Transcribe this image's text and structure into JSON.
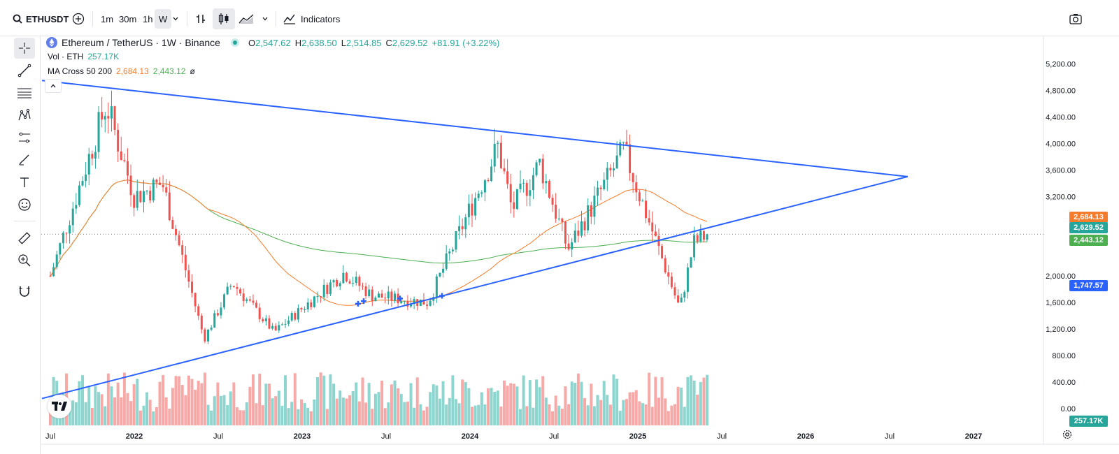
{
  "toolbar": {
    "symbol": "ETHUSDT",
    "intervals": [
      "1m",
      "30m",
      "1h",
      "W"
    ],
    "active_interval": "W",
    "indicators_label": "Indicators"
  },
  "legend": {
    "title": "Ethereum / TetherUS · 1W · Binance",
    "o_label": "O",
    "o_value": "2,547.62",
    "h_label": "H",
    "h_value": "2,638.50",
    "l_label": "L",
    "l_value": "2,514.85",
    "c_label": "C",
    "c_value": "2,629.52",
    "change": "+81.91 (+3.22%)",
    "vol_label": "Vol · ETH",
    "vol_value": "257.17K",
    "ma_label": "MA Cross 50 200",
    "ma50": "2,684.13",
    "ma200": "2,443.12",
    "ma_extra": "ø"
  },
  "colors": {
    "up": "#26a69a",
    "down": "#ef5350",
    "up_vol": "#8fd5cf",
    "down_vol": "#f7a9a7",
    "ma50": "#f57c2a",
    "ma200": "#4caf50",
    "trendline": "#2962ff"
  },
  "price_axis": {
    "ticks": [
      "5,200.00",
      "4,800.00",
      "4,400.00",
      "4,000.00",
      "3,600.00",
      "3,200.00",
      "2,000.00",
      "1,600.00",
      "1,200.00",
      "800.00",
      "400.00",
      "0.00"
    ],
    "labels": [
      {
        "text": "2,684.13",
        "color": "#f57c2a"
      },
      {
        "text": "2,629.52",
        "color": "#26a69a"
      },
      {
        "text": "2,443.12",
        "color": "#4caf50"
      },
      {
        "text": "1,747.57",
        "color": "#2962ff"
      },
      {
        "text": "257.17K",
        "color": "#26a69a"
      }
    ]
  },
  "time_axis": [
    "Jul",
    "2022",
    "Jul",
    "2023",
    "Jul",
    "2024",
    "Jul",
    "2025",
    "Jul",
    "2026",
    "Jul",
    "2027"
  ],
  "chart_data": {
    "type": "candlestick",
    "symbol": "ETHUSDT",
    "interval": "1W",
    "last_candle": {
      "open": 2547.62,
      "high": 2638.5,
      "low": 2514.85,
      "close": 2629.52,
      "change": 81.91,
      "change_pct": 3.22,
      "volume": "257.17K"
    },
    "indicators": {
      "ma50": 2684.13,
      "ma200": 2443.12
    },
    "anchors": [
      {
        "date": "2021-07",
        "price": 2000
      },
      {
        "date": "2021-11",
        "price": 4600
      },
      {
        "date": "2022-01",
        "price": 3200
      },
      {
        "date": "2022-03",
        "price": 3400
      },
      {
        "date": "2022-06",
        "price": 1050
      },
      {
        "date": "2022-08",
        "price": 1900
      },
      {
        "date": "2022-11",
        "price": 1150
      },
      {
        "date": "2023-04",
        "price": 2050
      },
      {
        "date": "2023-06",
        "price": 1700
      },
      {
        "date": "2023-10",
        "price": 1600
      },
      {
        "date": "2024-03",
        "price": 3950
      },
      {
        "date": "2024-04",
        "price": 3000
      },
      {
        "date": "2024-06",
        "price": 3700
      },
      {
        "date": "2024-08",
        "price": 2400
      },
      {
        "date": "2024-12",
        "price": 3900
      },
      {
        "date": "2025-02",
        "price": 2700
      },
      {
        "date": "2025-04",
        "price": 1500
      },
      {
        "date": "2025-05",
        "price": 2500
      },
      {
        "date": "2025-06",
        "price": 2630
      }
    ],
    "trendlines": [
      {
        "from": {
          "date": "2021-07",
          "price": 4950
        },
        "to": {
          "date": "2026-08",
          "price": 3500
        }
      },
      {
        "from": {
          "date": "2021-07",
          "price": 150
        },
        "to": {
          "date": "2026-08",
          "price": 3500
        }
      }
    ],
    "ylim": [
      0,
      5400
    ]
  }
}
